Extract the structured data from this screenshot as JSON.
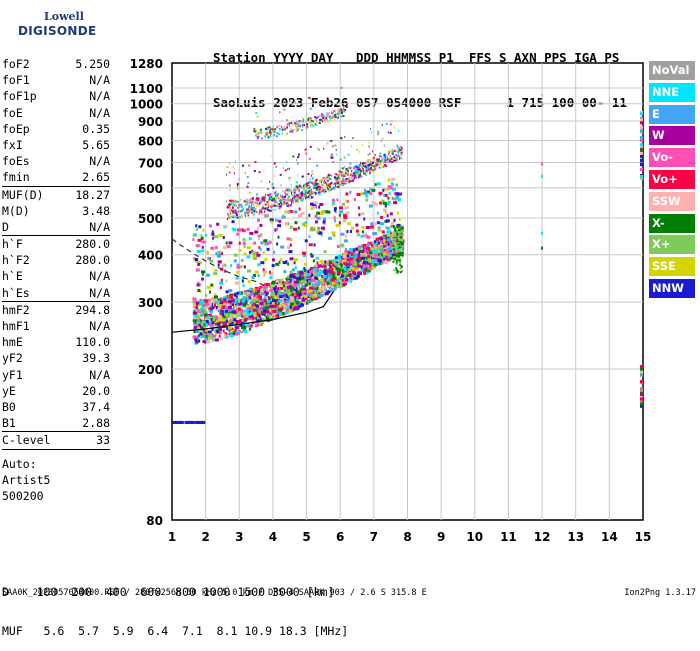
{
  "logo": {
    "line1": "Lowell",
    "line2": "DIGISONDE"
  },
  "header": {
    "line1": "Station YYYY DAY   DDD HHMMSS P1  FFS S AXN PPS IGA PS",
    "line2": "SaoLuis 2023 Feb26 057 054000 RSF      1 715 100 00- 11"
  },
  "params": [
    {
      "k": "foF2",
      "v": "5.250"
    },
    {
      "k": "foF1",
      "v": "N/A"
    },
    {
      "k": "foF1p",
      "v": "N/A"
    },
    {
      "k": "foE",
      "v": "N/A"
    },
    {
      "k": "foEp",
      "v": "0.35"
    },
    {
      "k": "fxI",
      "v": "5.65"
    },
    {
      "k": "foEs",
      "v": "N/A"
    },
    {
      "k": "fmin",
      "v": "2.65"
    },
    {
      "k": "MUF(D)",
      "v": "18.27"
    },
    {
      "k": "M(D)",
      "v": "3.48"
    },
    {
      "k": "D",
      "v": "N/A"
    },
    {
      "k": "h`F",
      "v": "280.0"
    },
    {
      "k": "h`F2",
      "v": "280.0"
    },
    {
      "k": "h`E",
      "v": "N/A"
    },
    {
      "k": "h`Es",
      "v": "N/A"
    },
    {
      "k": "hmF2",
      "v": "294.8"
    },
    {
      "k": "hmF1",
      "v": "N/A"
    },
    {
      "k": "hmE",
      "v": "110.0"
    },
    {
      "k": "yF2",
      "v": "39.3"
    },
    {
      "k": "yF1",
      "v": "N/A"
    },
    {
      "k": "yE",
      "v": "20.0"
    },
    {
      "k": "B0",
      "v": "37.4"
    },
    {
      "k": "B1",
      "v": "2.88"
    },
    {
      "k": "C-level",
      "v": "33"
    }
  ],
  "notes": [
    "Auto:",
    "Artist5",
    "500200"
  ],
  "legend": [
    {
      "label": "NoVal",
      "color": "#a0a0a0"
    },
    {
      "label": "NNE",
      "color": "#00e5ff"
    },
    {
      "label": "E",
      "color": "#42a5f5"
    },
    {
      "label": "W",
      "color": "#a6009e"
    },
    {
      "label": "Vo-",
      "color": "#ff4fb5"
    },
    {
      "label": "Vo+",
      "color": "#ff0044"
    },
    {
      "label": "SSW",
      "color": "#ffb0b0"
    },
    {
      "label": "X-",
      "color": "#008000"
    },
    {
      "label": "X+",
      "color": "#7ecb5a"
    },
    {
      "label": "SSE",
      "color": "#d4d400"
    },
    {
      "label": "NNW",
      "color": "#1a1ad0"
    }
  ],
  "bottom": {
    "line1": "D    100  200  400  600  800 1000 1500 3000 [km]",
    "line2": "MUF   5.6  5.7  5.9  6.4  7.1  8.1 10.9 18.3 [MHz]"
  },
  "footer": {
    "left": "SAA0K_2023057054000.RSF / 280fx256h 50 kHz 5.0 km / DPS-4 SAA0K 903 / 2.6 S 315.8 E",
    "right": "Ion2Png 1.3.17"
  },
  "chart_data": {
    "type": "scatter",
    "x_ticks": [
      1,
      2,
      3,
      4,
      5,
      6,
      7,
      8,
      9,
      10,
      11,
      12,
      13,
      14,
      15
    ],
    "y_ticks": [
      80,
      200,
      300,
      400,
      500,
      600,
      700,
      800,
      900,
      1000,
      1100,
      1280
    ],
    "xlim": [
      1,
      15
    ],
    "ylim": [
      80,
      1280
    ],
    "y_scale": "log",
    "grid": true,
    "traces": [
      {
        "name": "F-trace (1st hop)",
        "x_range": [
          1.6,
          7.8
        ],
        "h_start": 260,
        "h_end": 430
      },
      {
        "name": "F-trace (2nd hop)",
        "x_range": [
          2.6,
          7.8
        ],
        "h_start": 520,
        "h_end": 740
      },
      {
        "name": "F-trace (3rd hop)",
        "x_range": [
          3.4,
          6.2
        ],
        "h_start": 830,
        "h_end": 960
      },
      {
        "name": "low echoes",
        "x_range": [
          1.0,
          2.0
        ],
        "h_start": 145,
        "h_end": 145
      }
    ],
    "profile_curve": [
      [
        1.0,
        250
      ],
      [
        2.0,
        255
      ],
      [
        3.0,
        262
      ],
      [
        4.0,
        270
      ],
      [
        5.0,
        282
      ],
      [
        5.5,
        292
      ],
      [
        5.8,
        320
      ]
    ],
    "dashed_curve": [
      [
        1.0,
        440
      ],
      [
        1.5,
        410
      ],
      [
        2.0,
        385
      ],
      [
        2.5,
        365
      ],
      [
        3.0,
        350
      ],
      [
        3.5,
        340
      ],
      [
        3.8,
        330
      ]
    ]
  }
}
